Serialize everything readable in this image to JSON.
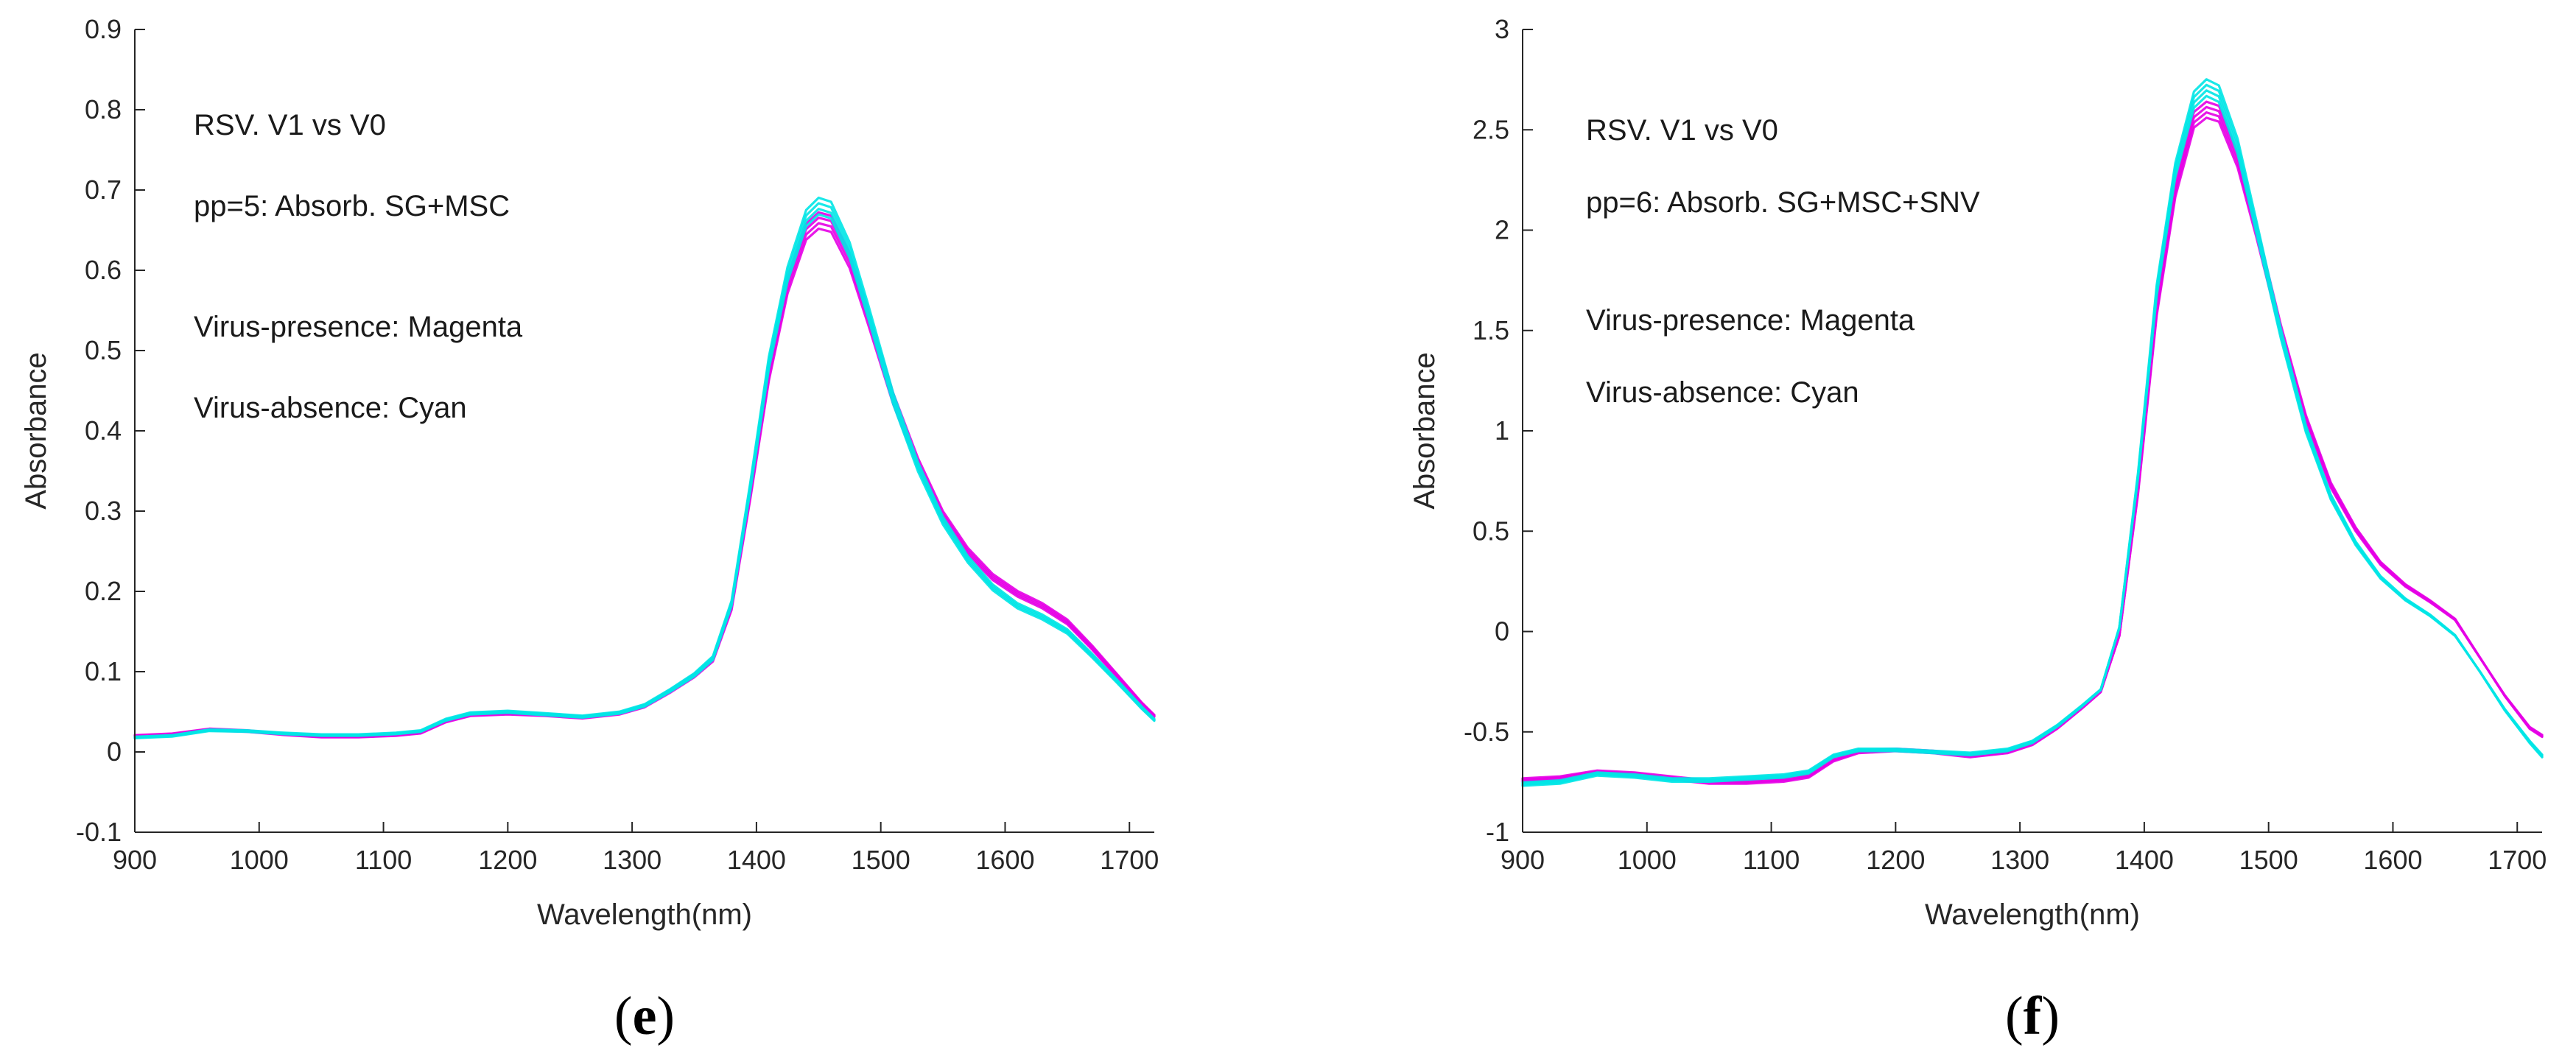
{
  "chart_data": [
    {
      "type": "line",
      "panel_label": {
        "open": "(",
        "letter": "e",
        "close": ")"
      },
      "xlabel": "Wavelength(nm)",
      "ylabel": "Absorbance",
      "xlim": [
        900,
        1720
      ],
      "ylim": [
        -0.1,
        0.9
      ],
      "xticks": [
        900,
        1000,
        1100,
        1200,
        1300,
        1400,
        1500,
        1600,
        1700
      ],
      "yticks": [
        -0.1,
        0,
        0.1,
        0.2,
        0.3,
        0.4,
        0.5,
        0.6,
        0.7,
        0.8,
        0.9
      ],
      "ytick_labels": [
        "-0.1",
        "0",
        "0.1",
        "0.2",
        "0.3",
        "0.4",
        "0.5",
        "0.6",
        "0.7",
        "0.8",
        "0.9"
      ],
      "annotations": [
        "RSV. V1 vs V0",
        "pp=5: Absorb. SG+MSC",
        "Virus-presence: Magenta",
        "Virus-absence:  Cyan"
      ],
      "series": [
        {
          "name": "Virus-presence",
          "color": "#e600e6",
          "x": [
            900,
            930,
            960,
            990,
            1020,
            1050,
            1080,
            1110,
            1130,
            1150,
            1170,
            1200,
            1230,
            1260,
            1290,
            1310,
            1330,
            1350,
            1365,
            1380,
            1395,
            1410,
            1425,
            1440,
            1450,
            1460,
            1475,
            1490,
            1510,
            1530,
            1550,
            1570,
            1590,
            1610,
            1630,
            1650,
            1670,
            1690,
            1710,
            1720
          ],
          "y": [
            0.02,
            0.022,
            0.028,
            0.026,
            0.022,
            0.019,
            0.019,
            0.021,
            0.024,
            0.038,
            0.046,
            0.048,
            0.046,
            0.043,
            0.048,
            0.057,
            0.075,
            0.095,
            0.115,
            0.18,
            0.32,
            0.47,
            0.58,
            0.648,
            0.662,
            0.658,
            0.612,
            0.54,
            0.44,
            0.36,
            0.295,
            0.25,
            0.218,
            0.197,
            0.182,
            0.162,
            0.13,
            0.095,
            0.06,
            0.045
          ]
        },
        {
          "name": "Virus-absence",
          "color": "#00e6e6",
          "x": [
            900,
            930,
            960,
            990,
            1020,
            1050,
            1080,
            1110,
            1130,
            1150,
            1170,
            1200,
            1230,
            1260,
            1290,
            1310,
            1330,
            1350,
            1365,
            1380,
            1395,
            1410,
            1425,
            1440,
            1450,
            1460,
            1475,
            1490,
            1510,
            1530,
            1550,
            1570,
            1590,
            1610,
            1630,
            1650,
            1670,
            1690,
            1710,
            1720
          ],
          "y": [
            0.018,
            0.02,
            0.027,
            0.026,
            0.023,
            0.021,
            0.021,
            0.023,
            0.026,
            0.04,
            0.048,
            0.05,
            0.047,
            0.044,
            0.049,
            0.058,
            0.076,
            0.096,
            0.117,
            0.185,
            0.33,
            0.485,
            0.595,
            0.665,
            0.68,
            0.675,
            0.625,
            0.548,
            0.44,
            0.355,
            0.288,
            0.24,
            0.205,
            0.182,
            0.168,
            0.15,
            0.12,
            0.088,
            0.055,
            0.04
          ]
        }
      ]
    },
    {
      "type": "line",
      "panel_label": {
        "open": "(",
        "letter": "f",
        "close": ")"
      },
      "xlabel": "Wavelength(nm)",
      "ylabel": "Absorbance",
      "xlim": [
        900,
        1720
      ],
      "ylim": [
        -1,
        3
      ],
      "xticks": [
        900,
        1000,
        1100,
        1200,
        1300,
        1400,
        1500,
        1600,
        1700
      ],
      "yticks": [
        -1,
        -0.5,
        0,
        0.5,
        1,
        1.5,
        2,
        2.5,
        3
      ],
      "ytick_labels": [
        "-1",
        "-0.5",
        "0",
        "0.5",
        "1",
        "1.5",
        "2",
        "2.5",
        "3"
      ],
      "annotations": [
        "RSV. V1 vs V0",
        "pp=6: Absorb. SG+MSC+SNV",
        "Virus-presence: Magenta",
        "Virus-absence:  Cyan"
      ],
      "series": [
        {
          "name": "Virus-presence",
          "color": "#e600e6",
          "x": [
            900,
            930,
            960,
            990,
            1020,
            1050,
            1080,
            1110,
            1130,
            1150,
            1170,
            1200,
            1230,
            1260,
            1290,
            1310,
            1330,
            1350,
            1365,
            1380,
            1395,
            1410,
            1425,
            1440,
            1450,
            1460,
            1475,
            1490,
            1510,
            1530,
            1550,
            1570,
            1590,
            1610,
            1630,
            1650,
            1670,
            1690,
            1710,
            1720
          ],
          "y": [
            -0.74,
            -0.73,
            -0.7,
            -0.71,
            -0.73,
            -0.75,
            -0.75,
            -0.74,
            -0.72,
            -0.64,
            -0.6,
            -0.59,
            -0.6,
            -0.62,
            -0.6,
            -0.56,
            -0.48,
            -0.38,
            -0.3,
            -0.02,
            0.7,
            1.6,
            2.2,
            2.55,
            2.6,
            2.58,
            2.35,
            2.0,
            1.5,
            1.06,
            0.73,
            0.51,
            0.34,
            0.23,
            0.15,
            0.06,
            -0.13,
            -0.32,
            -0.48,
            -0.52
          ]
        },
        {
          "name": "Virus-absence",
          "color": "#00e6e6",
          "x": [
            900,
            930,
            960,
            990,
            1020,
            1050,
            1080,
            1110,
            1130,
            1150,
            1170,
            1200,
            1230,
            1260,
            1290,
            1310,
            1330,
            1350,
            1365,
            1380,
            1395,
            1410,
            1425,
            1440,
            1450,
            1460,
            1475,
            1490,
            1510,
            1530,
            1550,
            1570,
            1590,
            1610,
            1630,
            1650,
            1670,
            1690,
            1710,
            1720
          ],
          "y": [
            -0.76,
            -0.75,
            -0.71,
            -0.72,
            -0.74,
            -0.74,
            -0.73,
            -0.72,
            -0.7,
            -0.62,
            -0.59,
            -0.59,
            -0.6,
            -0.61,
            -0.59,
            -0.55,
            -0.47,
            -0.37,
            -0.29,
            0.02,
            0.78,
            1.7,
            2.3,
            2.65,
            2.71,
            2.68,
            2.42,
            2.02,
            1.48,
            1.01,
            0.67,
            0.44,
            0.27,
            0.16,
            0.08,
            -0.02,
            -0.2,
            -0.39,
            -0.55,
            -0.62
          ]
        }
      ]
    }
  ]
}
